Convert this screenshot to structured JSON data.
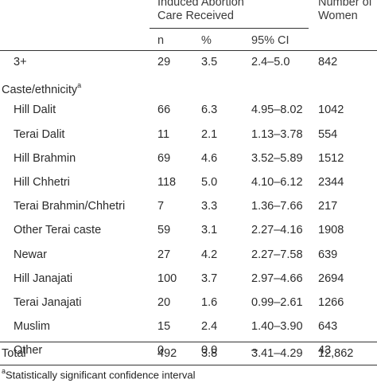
{
  "header": {
    "group_title_line1": "Induced Abortion",
    "group_title_line2": "Care Received",
    "women_line1": "Number of",
    "women_line2": "Women",
    "col_n": "n",
    "col_pct": "%",
    "col_ci": "95% CI"
  },
  "rows": [
    {
      "label": "3+",
      "n": "29",
      "pct": "3.5",
      "ci": "2.4–5.0",
      "women": "842"
    },
    {
      "section": "Caste/ethnicity",
      "sup": "a"
    },
    {
      "label": "Hill Dalit",
      "n": "66",
      "pct": "6.3",
      "ci": "4.95–8.02",
      "women": "1042"
    },
    {
      "label": "Terai Dalit",
      "n": "11",
      "pct": "2.1",
      "ci": "1.13–3.78",
      "women": "554"
    },
    {
      "label": "Hill Brahmin",
      "n": "69",
      "pct": "4.6",
      "ci": "3.52–5.89",
      "women": "1512"
    },
    {
      "label": "Hill Chhetri",
      "n": "118",
      "pct": "5.0",
      "ci": "4.10–6.12",
      "women": "2344"
    },
    {
      "label": "Terai Brahmin/Chhetri",
      "n": "7",
      "pct": "3.3",
      "ci": "1.36–7.66",
      "women": "217"
    },
    {
      "label": "Other Terai caste",
      "n": "59",
      "pct": "3.1",
      "ci": "2.27–4.16",
      "women": "1908"
    },
    {
      "label": "Newar",
      "n": "27",
      "pct": "4.2",
      "ci": "2.27–7.58",
      "women": "639"
    },
    {
      "label": "Hill Janajati",
      "n": "100",
      "pct": "3.7",
      "ci": "2.97–4.66",
      "women": "2694"
    },
    {
      "label": "Terai Janajati",
      "n": "20",
      "pct": "1.6",
      "ci": "0.99–2.61",
      "women": "1266"
    },
    {
      "label": "Muslim",
      "n": "15",
      "pct": "2.4",
      "ci": "1.40–3.90",
      "women": "643"
    },
    {
      "label": "Other",
      "n": "0",
      "pct": "0.0",
      "ci": "–",
      "women": "43"
    }
  ],
  "total": {
    "label": "Total",
    "n": "492",
    "pct": "3.8",
    "ci": "3.41–4.29",
    "women": "12,862"
  },
  "footnote": {
    "mark": "a",
    "text": "Statistically significant confidence interval"
  }
}
